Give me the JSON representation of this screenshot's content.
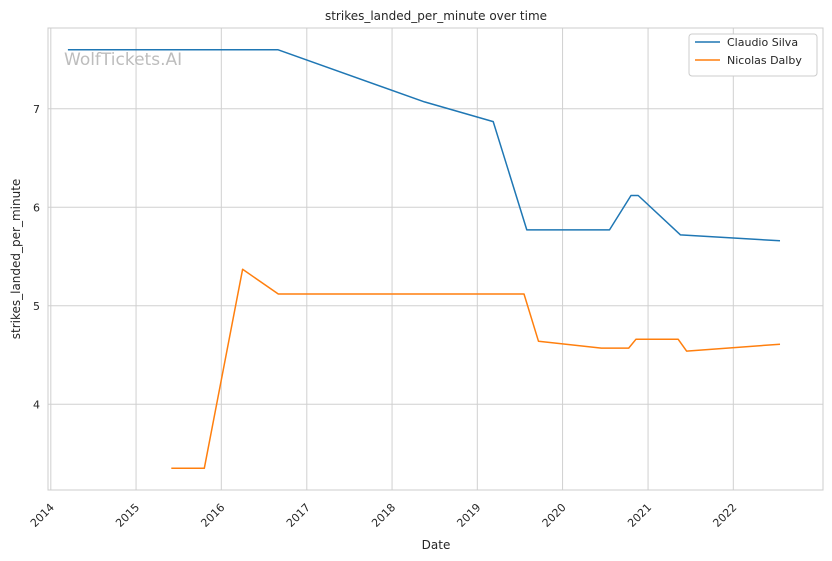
{
  "chart_data": {
    "type": "line",
    "title": "strikes_landed_per_minute over time",
    "xlabel": "Date",
    "ylabel": "strikes_landed_per_minute",
    "watermark": "WolfTickets.AI",
    "x_ticks": [
      "2014",
      "2015",
      "2016",
      "2017",
      "2018",
      "2019",
      "2020",
      "2021",
      "2022"
    ],
    "y_ticks": [
      "4",
      "5",
      "6",
      "7"
    ],
    "xlim": [
      "2013-12-20",
      "2023-01-20"
    ],
    "ylim": [
      3.13,
      7.82
    ],
    "grid": true,
    "legend_position": "top-right",
    "series": [
      {
        "name": "Claudio Silva",
        "color": "#1f77b4",
        "points": [
          {
            "date": "2014-03-15",
            "value": 7.6
          },
          {
            "date": "2016-08-30",
            "value": 7.6
          },
          {
            "date": "2018-05-20",
            "value": 7.07
          },
          {
            "date": "2019-03-10",
            "value": 6.87
          },
          {
            "date": "2019-08-01",
            "value": 5.77
          },
          {
            "date": "2020-07-20",
            "value": 5.77
          },
          {
            "date": "2020-10-20",
            "value": 6.12
          },
          {
            "date": "2020-11-20",
            "value": 6.12
          },
          {
            "date": "2021-05-20",
            "value": 5.72
          },
          {
            "date": "2022-07-20",
            "value": 5.66
          }
        ]
      },
      {
        "name": "Nicolas Dalby",
        "color": "#ff7f0e",
        "points": [
          {
            "date": "2015-06-01",
            "value": 3.35
          },
          {
            "date": "2015-10-20",
            "value": 3.35
          },
          {
            "date": "2016-04-01",
            "value": 5.37
          },
          {
            "date": "2016-09-01",
            "value": 5.12
          },
          {
            "date": "2019-07-20",
            "value": 5.12
          },
          {
            "date": "2019-09-20",
            "value": 4.64
          },
          {
            "date": "2020-06-15",
            "value": 4.57
          },
          {
            "date": "2020-10-10",
            "value": 4.57
          },
          {
            "date": "2020-11-10",
            "value": 4.66
          },
          {
            "date": "2021-05-10",
            "value": 4.66
          },
          {
            "date": "2021-06-15",
            "value": 4.54
          },
          {
            "date": "2022-07-20",
            "value": 4.61
          }
        ]
      }
    ]
  }
}
